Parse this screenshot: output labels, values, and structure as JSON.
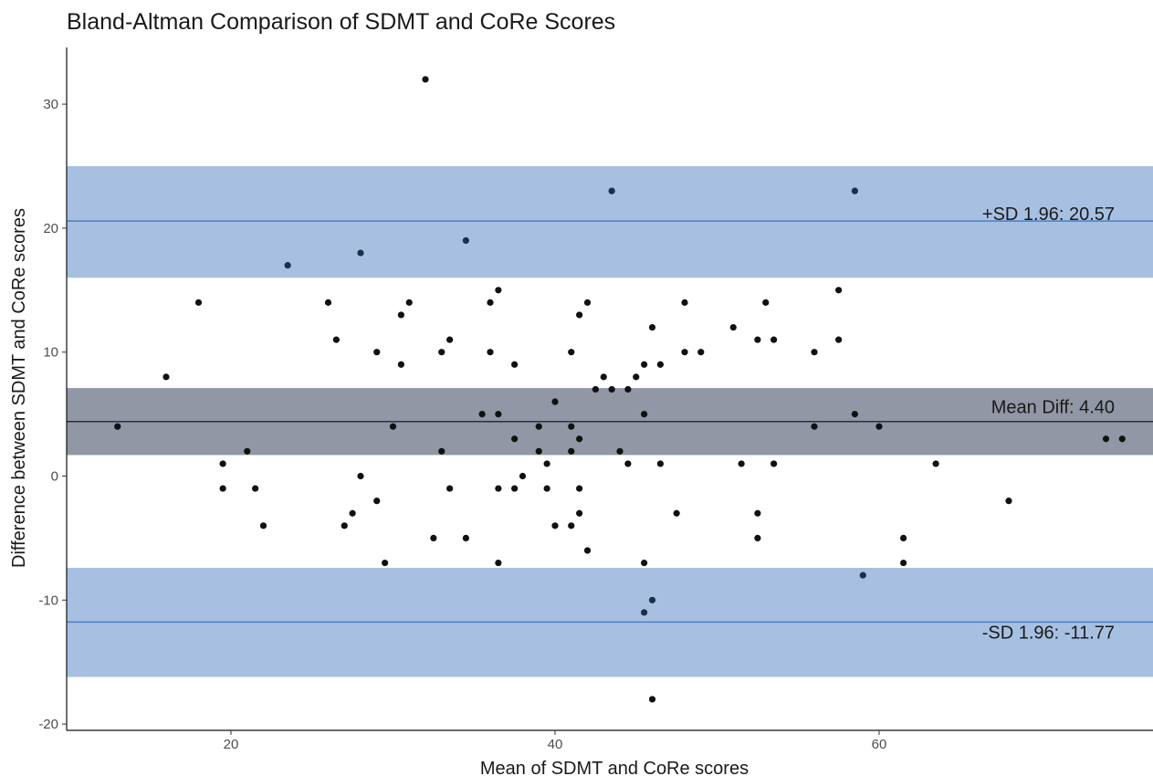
{
  "chart_data": {
    "type": "scatter",
    "title": "Bland-Altman Comparison of SDMT and CoRe Scores",
    "xlabel": "Mean of SDMT and CoRe scores",
    "ylabel": "Difference between SDMT and CoRe scores",
    "xlim": [
      10,
      77
    ],
    "ylim": [
      -20.5,
      34.5
    ],
    "x_ticks": [
      20,
      40,
      60
    ],
    "y_ticks": [
      -20,
      -10,
      0,
      10,
      20,
      30
    ],
    "grid": false,
    "bands": [
      {
        "name": "upper",
        "from": 16.0,
        "to": 25.0,
        "color": "#a7c0e2"
      },
      {
        "name": "mean",
        "from": 1.7,
        "to": 7.1,
        "color": "#9297a5"
      },
      {
        "name": "lower",
        "from": -16.2,
        "to": -7.4,
        "color": "#a7c0e2"
      }
    ],
    "reference_lines": [
      {
        "name": "upper-loa",
        "y": 20.57,
        "label": "+SD 1.96: 20.57",
        "color": "#4a7fc1"
      },
      {
        "name": "mean-diff",
        "y": 4.4,
        "label": "Mean Diff: 4.40",
        "color": "#2a2e40"
      },
      {
        "name": "lower-loa",
        "y": -11.77,
        "label": "-SD 1.96: -11.77",
        "color": "#4a7fc1"
      }
    ],
    "point_color": "#111111",
    "points": [
      {
        "x": 13,
        "y": 4
      },
      {
        "x": 16,
        "y": 8
      },
      {
        "x": 18,
        "y": 14
      },
      {
        "x": 19.5,
        "y": 1
      },
      {
        "x": 19.5,
        "y": -1
      },
      {
        "x": 21,
        "y": 2
      },
      {
        "x": 21.5,
        "y": -1
      },
      {
        "x": 22,
        "y": -4
      },
      {
        "x": 23.5,
        "y": 17
      },
      {
        "x": 26,
        "y": 14
      },
      {
        "x": 26.5,
        "y": 11
      },
      {
        "x": 27,
        "y": -4
      },
      {
        "x": 27.5,
        "y": -3
      },
      {
        "x": 28,
        "y": 18
      },
      {
        "x": 28,
        "y": 0
      },
      {
        "x": 29,
        "y": 10
      },
      {
        "x": 29,
        "y": -2
      },
      {
        "x": 29.5,
        "y": -7
      },
      {
        "x": 30,
        "y": 4
      },
      {
        "x": 30.5,
        "y": 13
      },
      {
        "x": 30.5,
        "y": 9
      },
      {
        "x": 31,
        "y": 14
      },
      {
        "x": 32,
        "y": 32
      },
      {
        "x": 32.5,
        "y": -5
      },
      {
        "x": 33,
        "y": 10
      },
      {
        "x": 33,
        "y": 2
      },
      {
        "x": 33.5,
        "y": 11
      },
      {
        "x": 33.5,
        "y": -1
      },
      {
        "x": 34.5,
        "y": 19
      },
      {
        "x": 34.5,
        "y": -5
      },
      {
        "x": 35.5,
        "y": 5
      },
      {
        "x": 36,
        "y": 14
      },
      {
        "x": 36,
        "y": 10
      },
      {
        "x": 36.5,
        "y": 15
      },
      {
        "x": 36.5,
        "y": 5
      },
      {
        "x": 36.5,
        "y": -1
      },
      {
        "x": 36.5,
        "y": -7
      },
      {
        "x": 37.5,
        "y": 9
      },
      {
        "x": 37.5,
        "y": 3
      },
      {
        "x": 37.5,
        "y": -1
      },
      {
        "x": 38,
        "y": 0
      },
      {
        "x": 39,
        "y": 4
      },
      {
        "x": 39,
        "y": 2
      },
      {
        "x": 39.5,
        "y": 1
      },
      {
        "x": 39.5,
        "y": -1
      },
      {
        "x": 40,
        "y": 6
      },
      {
        "x": 40,
        "y": -4
      },
      {
        "x": 41,
        "y": 10
      },
      {
        "x": 41,
        "y": 4
      },
      {
        "x": 41,
        "y": 2
      },
      {
        "x": 41,
        "y": -4
      },
      {
        "x": 41.5,
        "y": 13
      },
      {
        "x": 41.5,
        "y": 3
      },
      {
        "x": 41.5,
        "y": -1
      },
      {
        "x": 41.5,
        "y": -3
      },
      {
        "x": 42,
        "y": 14
      },
      {
        "x": 42,
        "y": -6
      },
      {
        "x": 42.5,
        "y": 7
      },
      {
        "x": 43,
        "y": 8
      },
      {
        "x": 43.5,
        "y": 23
      },
      {
        "x": 43.5,
        "y": 7
      },
      {
        "x": 44,
        "y": 2
      },
      {
        "x": 44.5,
        "y": 7
      },
      {
        "x": 44.5,
        "y": 1
      },
      {
        "x": 45,
        "y": 8
      },
      {
        "x": 45.5,
        "y": 9
      },
      {
        "x": 45.5,
        "y": 5
      },
      {
        "x": 45.5,
        "y": -7
      },
      {
        "x": 45.5,
        "y": -11
      },
      {
        "x": 46,
        "y": 12
      },
      {
        "x": 46,
        "y": -10
      },
      {
        "x": 46,
        "y": -18
      },
      {
        "x": 46.5,
        "y": 9
      },
      {
        "x": 46.5,
        "y": 1
      },
      {
        "x": 47.5,
        "y": -3
      },
      {
        "x": 48,
        "y": 14
      },
      {
        "x": 48,
        "y": 10
      },
      {
        "x": 49,
        "y": 10
      },
      {
        "x": 51,
        "y": 12
      },
      {
        "x": 51.5,
        "y": 1
      },
      {
        "x": 52.5,
        "y": 11
      },
      {
        "x": 52.5,
        "y": -3
      },
      {
        "x": 52.5,
        "y": -5
      },
      {
        "x": 53,
        "y": 14
      },
      {
        "x": 53.5,
        "y": 11
      },
      {
        "x": 53.5,
        "y": 1
      },
      {
        "x": 56,
        "y": 10
      },
      {
        "x": 56,
        "y": 4
      },
      {
        "x": 57.5,
        "y": 15
      },
      {
        "x": 57.5,
        "y": 11
      },
      {
        "x": 58.5,
        "y": 23
      },
      {
        "x": 58.5,
        "y": 5
      },
      {
        "x": 59,
        "y": -8
      },
      {
        "x": 60,
        "y": 4
      },
      {
        "x": 61.5,
        "y": -5
      },
      {
        "x": 61.5,
        "y": -7
      },
      {
        "x": 63.5,
        "y": 1
      },
      {
        "x": 68,
        "y": -2
      },
      {
        "x": 74,
        "y": 3
      },
      {
        "x": 75,
        "y": 3
      }
    ]
  }
}
